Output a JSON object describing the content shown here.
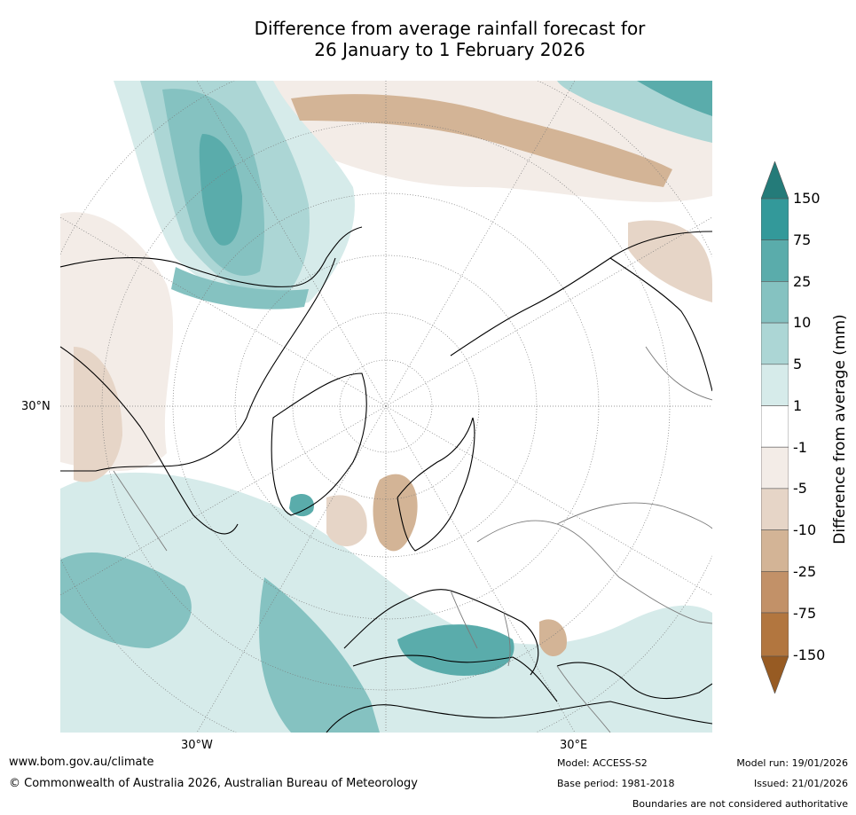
{
  "title": {
    "line1": "Difference from average rainfall forecast for",
    "line2": "26 January to 1 February 2026"
  },
  "map": {
    "projection": "north-polar-stereographic",
    "lat_label": "30°N",
    "lon_labels": [
      "30°W",
      "30°E"
    ]
  },
  "colorbar": {
    "title": "Difference from average (mm)",
    "ticks": [
      "150",
      "75",
      "25",
      "10",
      "5",
      "1",
      "-1",
      "-5",
      "-10",
      "-25",
      "-75",
      "-150"
    ],
    "colors": {
      "gt150": "#247b79",
      "75_150": "#33999a",
      "25_75": "#5aacab",
      "10_25": "#85c2c1",
      "5_10": "#acd6d5",
      "1_5": "#d6ebea",
      "n1_1": "#ffffff",
      "n5_n1": "#f3ece7",
      "n10_n5": "#e6d5c7",
      "n25_n10": "#d3b496",
      "n75_n25": "#c29168",
      "n150_n75": "#b2763f",
      "lt_n150": "#975b23"
    }
  },
  "footer": {
    "url": "www.bom.gov.au/climate",
    "copyright": "© Commonwealth of Australia 2026, Australian Bureau of Meteorology",
    "model": "Model: ACCESS-S2",
    "base_period": "Base period: 1981-2018",
    "model_run": "Model run: 19/01/2026",
    "issued": "Issued: 21/01/2026",
    "disclaimer": "Boundaries are not considered authoritative"
  }
}
